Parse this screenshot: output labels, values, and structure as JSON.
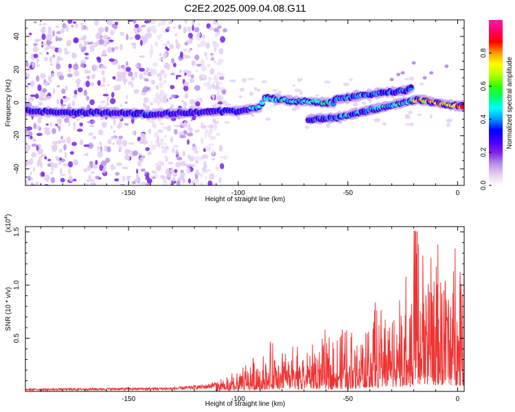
{
  "title": "C2E2.2025.009.04.08.G11",
  "chart_data": [
    {
      "type": "heatmap",
      "xlabel": "Height of straight line (km)",
      "ylabel": "Frequency (Hz)",
      "xlim": [
        -197,
        3
      ],
      "ylim": [
        -50,
        50
      ],
      "x_ticks": [
        -150,
        -100,
        -50,
        0
      ],
      "y_ticks": [
        -40,
        -20,
        0,
        20,
        40
      ],
      "colorbar": {
        "label": "Normalized spectral amplitude",
        "range": [
          0,
          1
        ],
        "ticks": [
          0.0,
          0.2,
          0.4,
          0.6,
          0.8
        ],
        "colormap": [
          "#ffffff",
          "#e6ccf5",
          "#b38ee6",
          "#7f1fe6",
          "#3f00ff",
          "#0000ff",
          "#0099ff",
          "#00ffff",
          "#00ff66",
          "#33ff00",
          "#b3ff00",
          "#ffff00",
          "#ff9900",
          "#ff0000",
          "#ff0066",
          "#ff1aa6"
        ]
      },
      "ridge_main": [
        [
          -197,
          -5
        ],
        [
          -180,
          -6
        ],
        [
          -160,
          -6
        ],
        [
          -140,
          -7
        ],
        [
          -120,
          -6
        ],
        [
          -100,
          -5
        ],
        [
          -90,
          -3
        ],
        [
          -88,
          3
        ],
        [
          -75,
          1
        ],
        [
          -60,
          0
        ]
      ],
      "ridge_lower": [
        [
          -68,
          -10
        ],
        [
          -55,
          -9
        ],
        [
          -45,
          -6
        ],
        [
          -35,
          -3
        ],
        [
          -25,
          0
        ],
        [
          -18,
          2
        ],
        [
          -10,
          0
        ],
        [
          0,
          -2
        ],
        [
          3,
          -2
        ]
      ],
      "ridge_upper": [
        [
          -55,
          2
        ],
        [
          -45,
          4
        ],
        [
          -35,
          6
        ],
        [
          -25,
          7
        ],
        [
          -20,
          9
        ]
      ],
      "noise_region_x": [
        -197,
        -112
      ]
    },
    {
      "type": "line",
      "xlabel": "Height of straight line (km)",
      "ylabel": "SNR (10 * v/v)",
      "y_multiplier": "(x10",
      "y_multiplier_exp": "4",
      "y_multiplier_close": ")",
      "xlim": [
        -197,
        3
      ],
      "ylim": [
        0,
        1.55
      ],
      "x_ticks": [
        -150,
        -100,
        -50,
        0
      ],
      "y_ticks": [
        0.5,
        1.0,
        1.5
      ],
      "color": "#ee3333",
      "envelope": [
        [
          -197,
          0.02
        ],
        [
          -130,
          0.03
        ],
        [
          -115,
          0.05
        ],
        [
          -105,
          0.1
        ],
        [
          -95,
          0.2
        ],
        [
          -85,
          0.32
        ],
        [
          -75,
          0.3
        ],
        [
          -60,
          0.38
        ],
        [
          -50,
          0.42
        ],
        [
          -40,
          0.55
        ],
        [
          -30,
          0.65
        ],
        [
          -22,
          0.75
        ],
        [
          -18,
          1.05
        ],
        [
          -12,
          0.95
        ],
        [
          -5,
          0.95
        ],
        [
          0,
          0.98
        ],
        [
          3,
          1.02
        ]
      ]
    }
  ]
}
